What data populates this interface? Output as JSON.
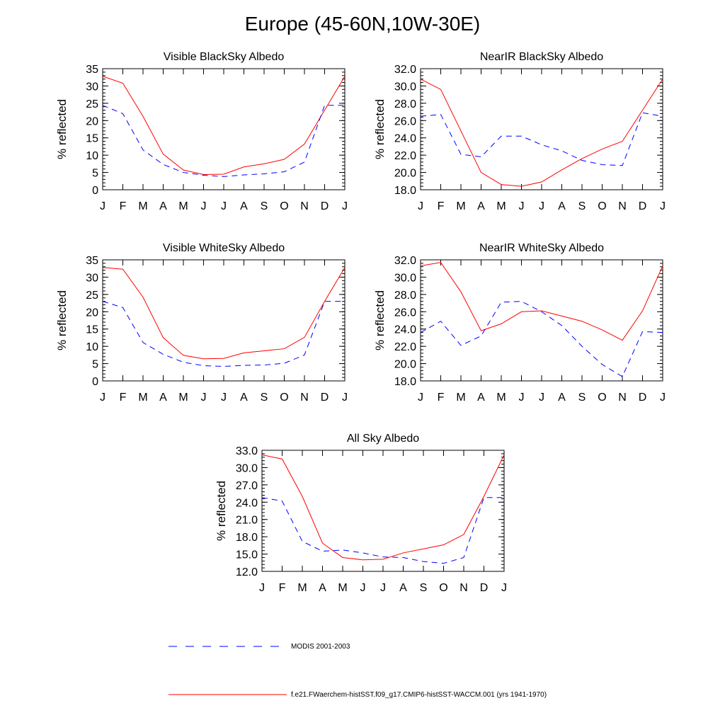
{
  "page": {
    "title": "Europe (45-60N,10W-30E)"
  },
  "colors": {
    "model": "#ff0000",
    "modis": "#0000ff"
  },
  "legend": {
    "items": [
      {
        "label": "MODIS 2001-2003",
        "color": "#0000ff",
        "style": "dashed"
      },
      {
        "label": "f.e21.FWaerchem-histSST.f09_g17.CMIP6-histSST-WACCM.001 (yrs 1941-1970)",
        "color": "#ff0000",
        "style": "solid"
      }
    ]
  },
  "chart_data": [
    {
      "type": "line",
      "title": "Visible BlackSky Albedo",
      "ylabel": "% reflected",
      "xlabel": "",
      "categories": [
        "J",
        "F",
        "M",
        "A",
        "M",
        "J",
        "J",
        "A",
        "S",
        "O",
        "N",
        "D",
        "J"
      ],
      "ylim": [
        0,
        35
      ],
      "yticks": [
        0,
        5,
        10,
        15,
        20,
        25,
        30,
        35
      ],
      "ytick_labels": [
        "0",
        "5",
        "10",
        "15",
        "20",
        "25",
        "30",
        "35"
      ],
      "yminor_step": 1,
      "grid": false,
      "series": [
        {
          "name": "f.e21.FWaerchem-histSST.f09_g17.CMIP6-histSST-WACCM.001 (yrs 1941-1970)",
          "color": "#ff0000",
          "style": "solid",
          "values": [
            32.8,
            30.8,
            21.2,
            10.3,
            5.7,
            4.4,
            4.5,
            6.6,
            7.5,
            8.8,
            13.2,
            23.0,
            32.8
          ]
        },
        {
          "name": "MODIS 2001-2003",
          "color": "#0000ff",
          "style": "dashed",
          "values": [
            24.4,
            22.0,
            11.5,
            7.3,
            5.0,
            4.2,
            3.8,
            4.3,
            4.6,
            5.2,
            8.0,
            24.4,
            24.4
          ]
        }
      ]
    },
    {
      "type": "line",
      "title": "NearIR BlackSky Albedo",
      "ylabel": "% reflected",
      "xlabel": "",
      "categories": [
        "J",
        "F",
        "M",
        "A",
        "M",
        "J",
        "J",
        "A",
        "S",
        "O",
        "N",
        "D",
        "J"
      ],
      "ylim": [
        18,
        32
      ],
      "yticks": [
        18,
        20,
        22,
        24,
        26,
        28,
        30,
        32
      ],
      "ytick_labels": [
        "18.0",
        "20.0",
        "22.0",
        "24.0",
        "26.0",
        "28.0",
        "30.0",
        "32.0"
      ],
      "yminor_step": 0.4,
      "grid": false,
      "series": [
        {
          "name": "f.e21.FWaerchem-histSST.f09_g17.CMIP6-histSST-WACCM.001 (yrs 1941-1970)",
          "color": "#ff0000",
          "style": "solid",
          "values": [
            30.8,
            29.6,
            24.8,
            20.0,
            18.6,
            18.4,
            18.9,
            20.3,
            21.6,
            22.7,
            23.6,
            27.2,
            30.8
          ]
        },
        {
          "name": "MODIS 2001-2003",
          "color": "#0000ff",
          "style": "dashed",
          "values": [
            26.5,
            26.7,
            22.1,
            21.8,
            24.2,
            24.2,
            23.2,
            22.5,
            21.4,
            20.9,
            20.8,
            26.9,
            26.5
          ]
        }
      ]
    },
    {
      "type": "line",
      "title": "Visible WhiteSky Albedo",
      "ylabel": "% reflected",
      "xlabel": "",
      "categories": [
        "J",
        "F",
        "M",
        "A",
        "M",
        "J",
        "J",
        "A",
        "S",
        "O",
        "N",
        "D",
        "J"
      ],
      "ylim": [
        0,
        35
      ],
      "yticks": [
        0,
        5,
        10,
        15,
        20,
        25,
        30,
        35
      ],
      "ytick_labels": [
        "0",
        "5",
        "10",
        "15",
        "20",
        "25",
        "30",
        "35"
      ],
      "yminor_step": 1,
      "grid": false,
      "series": [
        {
          "name": "f.e21.FWaerchem-histSST.f09_g17.CMIP6-histSST-WACCM.001 (yrs 1941-1970)",
          "color": "#ff0000",
          "style": "solid",
          "values": [
            32.8,
            32.3,
            24.2,
            12.5,
            7.4,
            6.4,
            6.5,
            8.1,
            8.7,
            9.3,
            12.6,
            23.0,
            32.8
          ]
        },
        {
          "name": "MODIS 2001-2003",
          "color": "#0000ff",
          "style": "dashed",
          "values": [
            23.0,
            21.2,
            11.1,
            7.7,
            5.4,
            4.4,
            4.2,
            4.5,
            4.6,
            5.1,
            7.5,
            23.0,
            23.0
          ]
        }
      ]
    },
    {
      "type": "line",
      "title": "NearIR WhiteSky Albedo",
      "ylabel": "% reflected",
      "xlabel": "",
      "categories": [
        "J",
        "F",
        "M",
        "A",
        "M",
        "J",
        "J",
        "A",
        "S",
        "O",
        "N",
        "D",
        "J"
      ],
      "ylim": [
        18,
        32
      ],
      "yticks": [
        18,
        20,
        22,
        24,
        26,
        28,
        30,
        32
      ],
      "ytick_labels": [
        "18.0",
        "20.0",
        "22.0",
        "24.0",
        "26.0",
        "28.0",
        "30.0",
        "32.0"
      ],
      "yminor_step": 0.4,
      "grid": false,
      "series": [
        {
          "name": "f.e21.FWaerchem-histSST.f09_g17.CMIP6-histSST-WACCM.001 (yrs 1941-1970)",
          "color": "#ff0000",
          "style": "solid",
          "values": [
            31.3,
            31.7,
            28.3,
            23.8,
            24.6,
            26.0,
            26.1,
            25.5,
            24.9,
            23.9,
            22.7,
            26.1,
            31.3
          ]
        },
        {
          "name": "MODIS 2001-2003",
          "color": "#0000ff",
          "style": "dashed",
          "values": [
            23.6,
            24.9,
            22.1,
            23.2,
            27.1,
            27.2,
            26.0,
            24.4,
            22.0,
            19.9,
            18.5,
            23.7,
            23.6
          ]
        }
      ]
    },
    {
      "type": "line",
      "title": "All Sky Albedo",
      "ylabel": "% reflected",
      "xlabel": "",
      "categories": [
        "J",
        "F",
        "M",
        "A",
        "M",
        "J",
        "J",
        "A",
        "S",
        "O",
        "N",
        "D",
        "J"
      ],
      "ylim": [
        12,
        33
      ],
      "yticks": [
        12,
        15,
        18,
        21,
        24,
        27,
        30,
        33
      ],
      "ytick_labels": [
        "12.0",
        "15.0",
        "18.0",
        "21.0",
        "24.0",
        "27.0",
        "30.0",
        "33.0"
      ],
      "yminor_step": 0.6,
      "grid": false,
      "series": [
        {
          "name": "f.e21.FWaerchem-histSST.f09_g17.CMIP6-histSST-WACCM.001 (yrs 1941-1970)",
          "color": "#ff0000",
          "style": "solid",
          "values": [
            32.2,
            31.5,
            25.0,
            16.9,
            14.4,
            14.0,
            14.1,
            15.2,
            15.9,
            16.6,
            18.4,
            25.0,
            32.2
          ]
        },
        {
          "name": "MODIS 2001-2003",
          "color": "#0000ff",
          "style": "dashed",
          "values": [
            24.8,
            24.2,
            17.2,
            15.5,
            15.7,
            15.2,
            14.5,
            14.4,
            13.7,
            13.4,
            14.4,
            24.8,
            24.8
          ]
        }
      ]
    }
  ]
}
